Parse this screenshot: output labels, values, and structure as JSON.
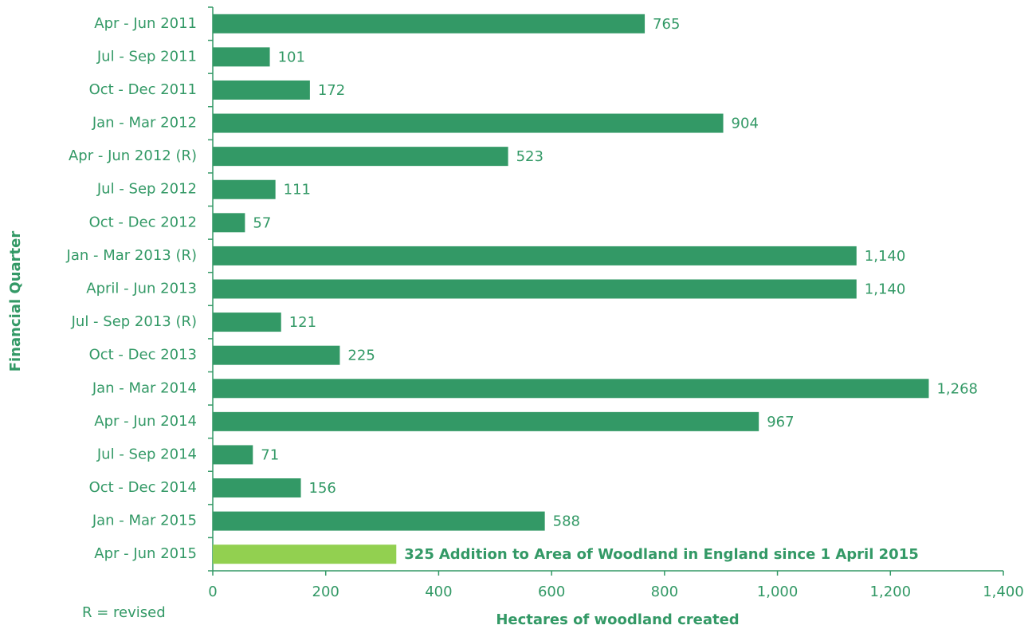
{
  "chart_data": {
    "type": "bar",
    "orientation": "horizontal",
    "y_axis_label": "Financial Quarter",
    "x_axis_label": "Hectares  of woodland created",
    "note": "R = revised",
    "annotation": "Addition to Area of Woodland in England since 1 April 2015",
    "categories": [
      "Apr - Jun 2011",
      "Jul - Sep  2011",
      "Oct - Dec 2011",
      "Jan - Mar 2012",
      "Apr - Jun 2012 (R)",
      "Jul - Sep 2012",
      "Oct - Dec 2012",
      "Jan - Mar 2013 (R)",
      "April - Jun 2013",
      "Jul - Sep 2013 (R)",
      "Oct - Dec 2013",
      "Jan - Mar 2014",
      "Apr - Jun 2014",
      "Jul - Sep 2014",
      "Oct - Dec 2014",
      "Jan - Mar 2015",
      "Apr - Jun 2015"
    ],
    "values": [
      765,
      101,
      172,
      904,
      523,
      111,
      57,
      1140,
      1140,
      121,
      225,
      1268,
      967,
      71,
      156,
      588,
      325
    ],
    "value_labels": [
      "765",
      "101",
      "172",
      "904",
      "523",
      "111",
      "57",
      "1,140",
      "1,140",
      "121",
      "225",
      "1,268",
      "967",
      "71",
      "156",
      "588",
      "325"
    ],
    "color": "#339966",
    "colors": [
      "#339966",
      "#339966",
      "#339966",
      "#339966",
      "#339966",
      "#339966",
      "#339966",
      "#339966",
      "#339966",
      "#339966",
      "#339966",
      "#339966",
      "#339966",
      "#339966",
      "#339966",
      "#339966",
      "#92d050"
    ],
    "xlim": [
      0,
      1400
    ],
    "xticks": [
      0,
      200,
      400,
      600,
      800,
      {
        "value": 1000,
        "label": "1,000"
      },
      {
        "value": 1200,
        "label": "1,200"
      },
      {
        "value": 1400,
        "label": "1,400"
      }
    ],
    "grid": false
  }
}
